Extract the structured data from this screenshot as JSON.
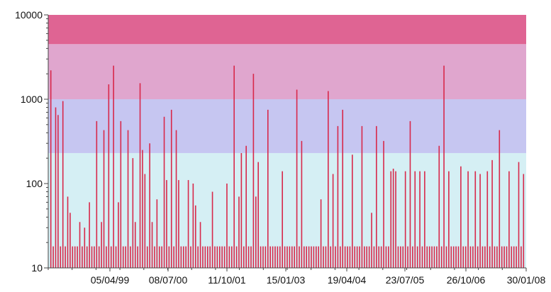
{
  "chart_data": {
    "type": "bar",
    "y_scale": "log",
    "ylim": [
      10,
      10000
    ],
    "y_ticks": [
      {
        "value": 10,
        "label": "10"
      },
      {
        "value": 100,
        "label": "100"
      },
      {
        "value": 1000,
        "label": "1000"
      },
      {
        "value": 10000,
        "label": "10000"
      }
    ],
    "x_ticks": [
      "05/04/99",
      "08/07/00",
      "11/10/01",
      "15/01/03",
      "19/04/04",
      "23/07/05",
      "26/10/06",
      "30/01/08"
    ],
    "background_bands": [
      {
        "from": 10,
        "to": 230,
        "color": "#d5eff4"
      },
      {
        "from": 230,
        "to": 1000,
        "color": "#c6c6f1"
      },
      {
        "from": 1000,
        "to": 4500,
        "color": "#e0a6ce"
      },
      {
        "from": 4500,
        "to": 10000,
        "color": "#df6493"
      }
    ],
    "bar_color": "#d8284a",
    "values": [
      2200,
      18,
      800,
      650,
      18,
      950,
      18,
      70,
      45,
      18,
      18,
      18,
      35,
      18,
      30,
      18,
      60,
      18,
      18,
      550,
      18,
      35,
      430,
      18,
      1500,
      18,
      2500,
      18,
      60,
      550,
      18,
      18,
      430,
      18,
      200,
      35,
      18,
      1550,
      250,
      130,
      18,
      300,
      35,
      18,
      65,
      18,
      18,
      620,
      110,
      18,
      750,
      18,
      430,
      110,
      18,
      18,
      18,
      110,
      18,
      100,
      55,
      18,
      35,
      18,
      18,
      18,
      18,
      80,
      18,
      18,
      18,
      18,
      18,
      100,
      18,
      18,
      2500,
      18,
      70,
      230,
      18,
      280,
      18,
      18,
      2000,
      70,
      180,
      18,
      18,
      18,
      750,
      18,
      18,
      18,
      18,
      18,
      140,
      18,
      18,
      18,
      18,
      18,
      1300,
      18,
      320,
      18,
      18,
      18,
      18,
      18,
      18,
      18,
      65,
      18,
      18,
      1250,
      18,
      130,
      18,
      480,
      18,
      750,
      18,
      18,
      18,
      220,
      18,
      18,
      18,
      480,
      18,
      18,
      18,
      45,
      18,
      480,
      18,
      18,
      320,
      18,
      18,
      140,
      150,
      140,
      18,
      18,
      18,
      140,
      18,
      550,
      18,
      140,
      18,
      140,
      18,
      140,
      18,
      18,
      18,
      18,
      18,
      280,
      18,
      2500,
      18,
      140,
      18,
      18,
      18,
      18,
      160,
      18,
      18,
      140,
      18,
      18,
      140,
      18,
      130,
      18,
      18,
      140,
      18,
      190,
      18,
      18,
      430,
      18,
      18,
      18,
      140,
      18,
      18,
      18,
      180,
      18,
      130
    ]
  }
}
